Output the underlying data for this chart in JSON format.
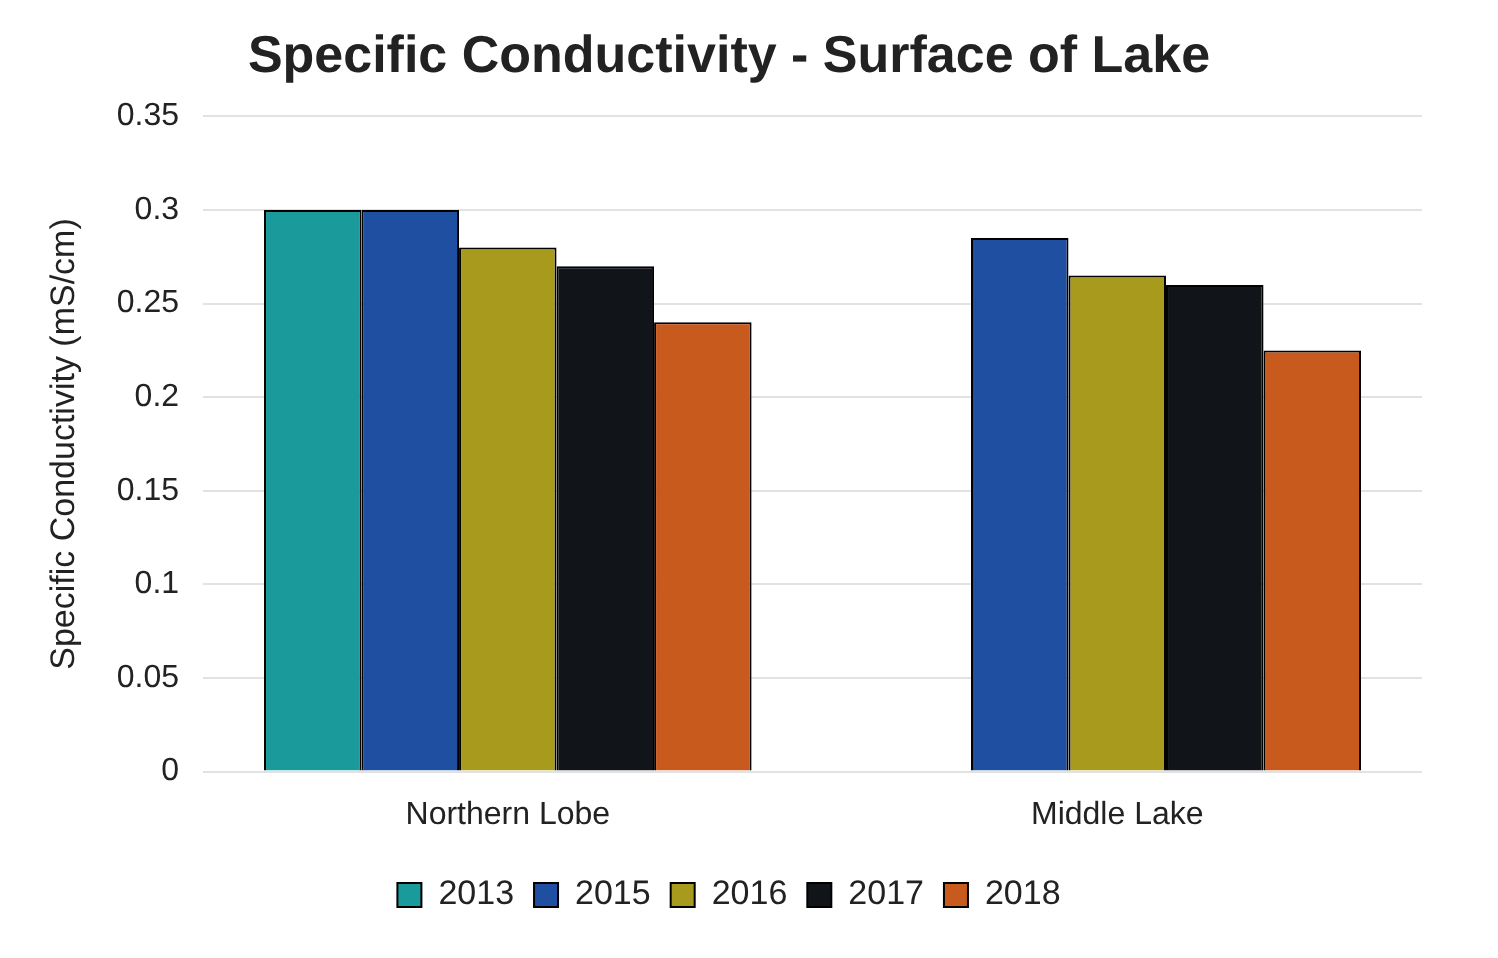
{
  "chart_data": {
    "type": "bar",
    "title": "Specific Conductivity - Surface of Lake",
    "ylabel": "Specific Conductivity (mS/cm)",
    "categories": [
      "Northern Lobe",
      "Middle Lake"
    ],
    "series": [
      {
        "name": "2013",
        "color": "#1a9a9a",
        "values": [
          0.3,
          null
        ]
      },
      {
        "name": "2015",
        "color": "#1f4fa0",
        "values": [
          0.3,
          0.285
        ]
      },
      {
        "name": "2016",
        "color": "#a89a1c",
        "values": [
          0.28,
          0.265
        ]
      },
      {
        "name": "2017",
        "color": "#111418",
        "values": [
          0.27,
          0.26
        ]
      },
      {
        "name": "2018",
        "color": "#c85a1e",
        "values": [
          0.24,
          0.225
        ]
      }
    ],
    "ylim": [
      0,
      0.35
    ],
    "yticks": [
      0,
      0.05,
      0.1,
      0.15,
      0.2,
      0.25,
      0.3,
      0.35
    ],
    "grid": "y",
    "legend": "bottom"
  }
}
